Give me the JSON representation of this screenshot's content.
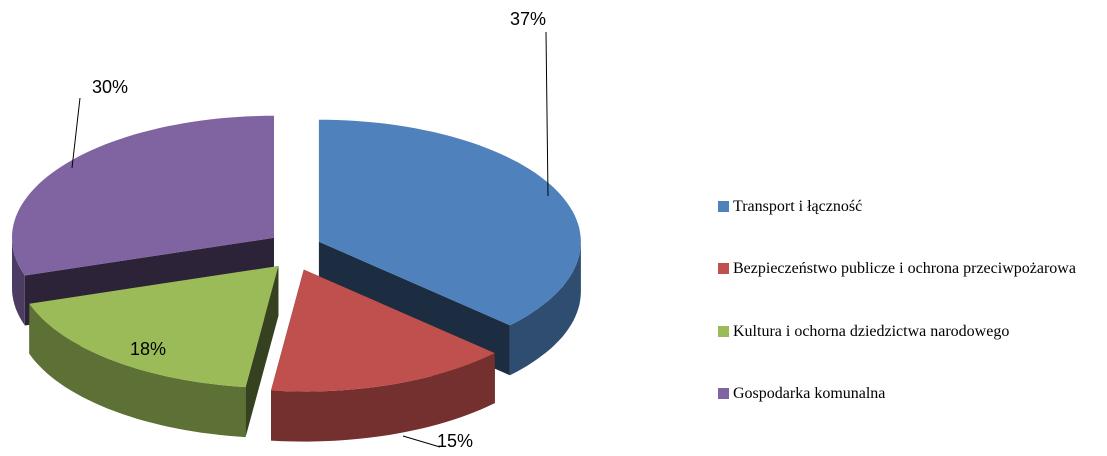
{
  "chart_data": {
    "type": "pie",
    "categories": [
      "Transport i łączność",
      "Bezpieczeństwo publicze i ochrona przeciwpożarowa",
      "Kultura i ochorna dziedzictwa narodowego",
      "Gospodarka komunalna"
    ],
    "values": [
      37,
      15,
      18,
      30
    ],
    "value_labels": [
      "37%",
      "15%",
      "18%",
      "30%"
    ],
    "colors": [
      "#4f81bd",
      "#c0504d",
      "#9bbb59",
      "#8064a2"
    ],
    "legend": "right"
  }
}
